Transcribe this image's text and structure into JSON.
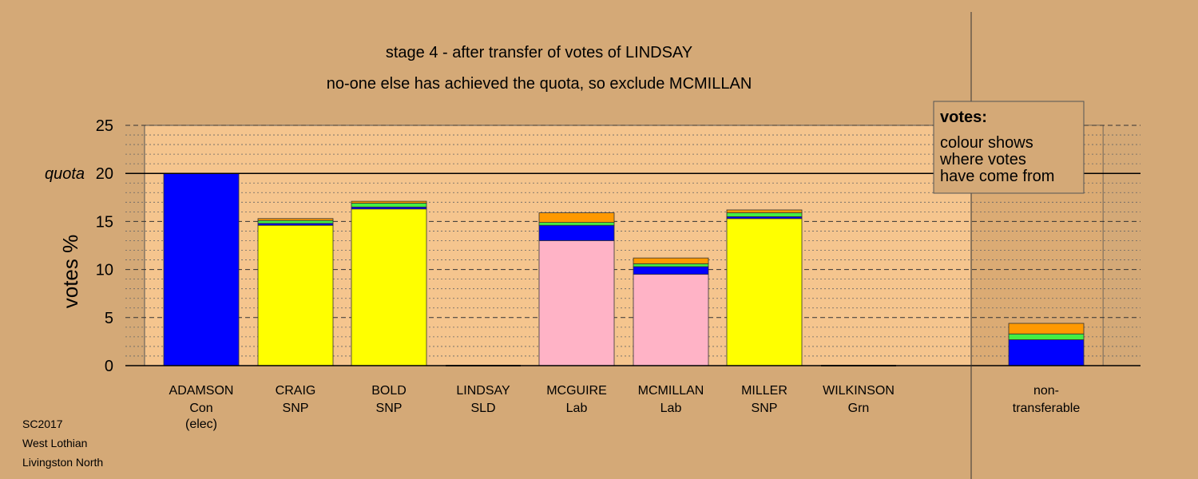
{
  "chart_data": {
    "type": "bar",
    "stacked": true,
    "title": "stage 4 - after transfer of votes of LINDSAY",
    "subtitle": "no-one else has achieved the quota, so exclude MCMILLAN",
    "ylabel": "votes %",
    "ylim": [
      0,
      25
    ],
    "yticks": [
      {
        "value": 0,
        "label": "0"
      },
      {
        "value": 5,
        "label": "5"
      },
      {
        "value": 10,
        "label": "10"
      },
      {
        "value": 15,
        "label": "15"
      },
      {
        "value": 20,
        "label": "20"
      },
      {
        "value": 25,
        "label": "25"
      }
    ],
    "quota": {
      "value": 20,
      "label": "quota"
    },
    "grid": "dashed horizontal",
    "categories": [
      {
        "name": "ADAMSON",
        "party": "Con",
        "note": "(elec)"
      },
      {
        "name": "CRAIG",
        "party": "SNP",
        "note": ""
      },
      {
        "name": "BOLD",
        "party": "SNP",
        "note": ""
      },
      {
        "name": "LINDSAY",
        "party": "SLD",
        "note": ""
      },
      {
        "name": "MCGUIRE",
        "party": "Lab",
        "note": ""
      },
      {
        "name": "MCMILLAN",
        "party": "Lab",
        "note": ""
      },
      {
        "name": "MILLER",
        "party": "SNP",
        "note": ""
      },
      {
        "name": "WILKINSON",
        "party": "Grn",
        "note": ""
      }
    ],
    "bars": [
      [
        {
          "color": "#0000ff",
          "value": 20.0
        }
      ],
      [
        {
          "color": "#ffff00",
          "value": 14.6
        },
        {
          "color": "#0000ff",
          "value": 0.2
        },
        {
          "color": "#44ee44",
          "value": 0.3
        },
        {
          "color": "#ff9900",
          "value": 0.2
        }
      ],
      [
        {
          "color": "#ffff00",
          "value": 16.3
        },
        {
          "color": "#0000ff",
          "value": 0.2
        },
        {
          "color": "#44ee44",
          "value": 0.4
        },
        {
          "color": "#ff9900",
          "value": 0.2
        }
      ],
      [],
      [
        {
          "color": "#ffb3c6",
          "value": 13.0
        },
        {
          "color": "#0000ff",
          "value": 1.6
        },
        {
          "color": "#44ee44",
          "value": 0.3
        },
        {
          "color": "#ff9900",
          "value": 1.0
        }
      ],
      [
        {
          "color": "#ffb3c6",
          "value": 9.5
        },
        {
          "color": "#0000ff",
          "value": 0.8
        },
        {
          "color": "#44ee44",
          "value": 0.3
        },
        {
          "color": "#ff9900",
          "value": 0.6
        }
      ],
      [
        {
          "color": "#ffff00",
          "value": 15.3
        },
        {
          "color": "#0000ff",
          "value": 0.2
        },
        {
          "color": "#44ee44",
          "value": 0.4
        },
        {
          "color": "#ff9900",
          "value": 0.3
        }
      ],
      []
    ],
    "nontransferable": {
      "label_line1": "non-",
      "label_line2": "transferable",
      "segments": [
        {
          "color": "#0000ff",
          "value": 2.7
        },
        {
          "color": "#44ee44",
          "value": 0.6
        },
        {
          "color": "#ff9900",
          "value": 1.1
        }
      ]
    },
    "legend": {
      "title": "votes:",
      "lines": [
        "colour shows",
        "where votes",
        "have come from"
      ],
      "placement": "top-right"
    }
  },
  "footer": {
    "lines": [
      "SC2017",
      "West Lothian",
      "Livingston North"
    ]
  },
  "colors": {
    "background": "#d4a977",
    "plot_area": "#f5c58e",
    "plot_edge": "#c5965f"
  }
}
